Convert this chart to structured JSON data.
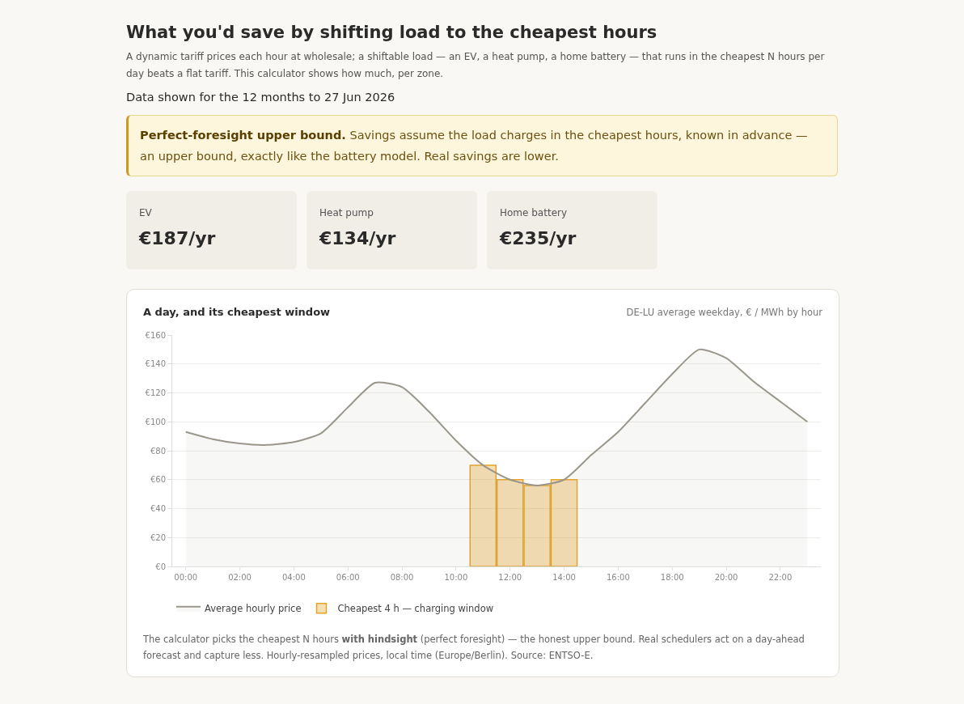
{
  "chart_data": [
    {
      "type": "other",
      "title": "What you'd save by shifting load to the cheapest hours",
      "subtitle": "A dynamic tariff prices each hour at wholesale; a shiftable load — an EV, a heat pump, a home battery — that runs in the cheapest N hours per day beats a flat tariff. This calculator shows how much, per zone.",
      "annotations": [
        "Data shown for the 12 months to 27 Jun 2026",
        "Perfect-foresight upper bound.",
        "Savings assume the load charges in the cheapest hours, known in advance — an upper bound, exactly like the battery model. Real savings are lower.",
        "EV",
        "€187/yr",
        "Heat pump",
        "€134/yr",
        "Home battery",
        "€235/yr"
      ]
    },
    {
      "type": "area",
      "title": "A day, and its cheapest window",
      "subtitle": "DE-LU average weekday, € / MWh by hour",
      "x": [
        0,
        1,
        2,
        3,
        4,
        5,
        6,
        7,
        8,
        9,
        10,
        11,
        12,
        13,
        14,
        15,
        16,
        17,
        18,
        19,
        20,
        21,
        22,
        23
      ],
      "series": [
        {
          "type": "area",
          "name": "Average hourly price",
          "color": "#9a968c",
          "values": [
            93,
            88,
            85,
            84,
            86,
            92,
            110,
            127,
            124,
            107,
            87,
            70,
            60,
            56,
            60,
            77,
            93,
            113,
            133,
            150,
            144,
            128,
            114,
            100
          ]
        },
        {
          "type": "bar",
          "name": "Cheapest 4 h — charging window",
          "color": "#e5a429",
          "x": [
            11,
            12,
            13,
            14
          ],
          "values": [
            70,
            60,
            56,
            60
          ]
        }
      ],
      "xlim": [
        -0.5,
        23.5
      ],
      "xticks": [
        {
          "value": 0,
          "label": "00:00"
        },
        {
          "value": 2,
          "label": "02:00"
        },
        {
          "value": 4,
          "label": "04:00"
        },
        {
          "value": 6,
          "label": "06:00"
        },
        {
          "value": 8,
          "label": "08:00"
        },
        {
          "value": 10,
          "label": "10:00"
        },
        {
          "value": 12,
          "label": "12:00"
        },
        {
          "value": 14,
          "label": "14:00"
        },
        {
          "value": 16,
          "label": "16:00"
        },
        {
          "value": 18,
          "label": "18:00"
        },
        {
          "value": 20,
          "label": "20:00"
        },
        {
          "value": 22,
          "label": "22:00"
        }
      ],
      "ylim": [
        0,
        160
      ],
      "yticks": [
        {
          "value": 0,
          "label": "€0"
        },
        {
          "value": 20,
          "label": "€20"
        },
        {
          "value": 40,
          "label": "€40"
        },
        {
          "value": 60,
          "label": "€60"
        },
        {
          "value": 80,
          "label": "€80"
        },
        {
          "value": 100,
          "label": "€100"
        },
        {
          "value": 120,
          "label": "€120"
        },
        {
          "value": 140,
          "label": "€140"
        },
        {
          "value": 160,
          "label": "€160"
        }
      ],
      "grid": "y",
      "legend": "bottom left",
      "annotations": [
        "The calculator picks the cheapest N hours",
        "with hindsight",
        "(perfect foresight) — the honest upper bound. Real schedulers act on a day-ahead forecast and capture less. Hourly-resampled prices, local time (Europe/Berlin). Source: ENTSO-E."
      ]
    }
  ]
}
